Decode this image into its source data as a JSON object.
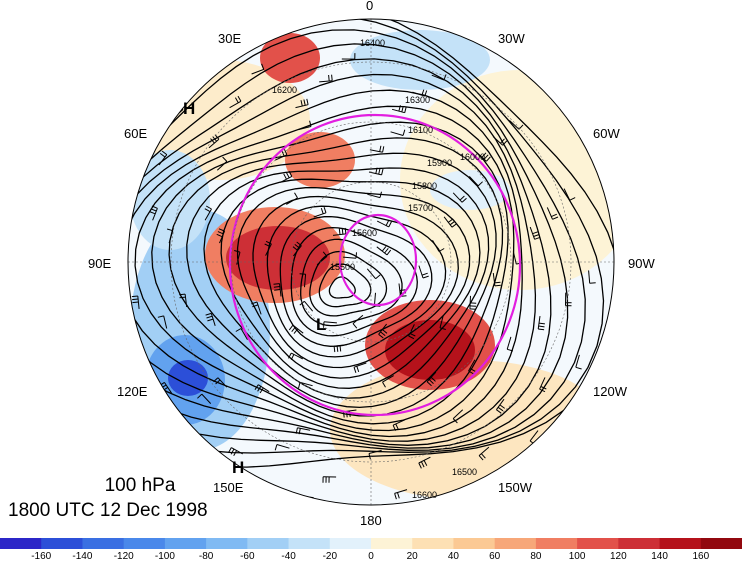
{
  "map": {
    "level_label": "100 hPa",
    "time_label": "1800 UTC 12 Dec 1998",
    "longitude_labels": [
      "0",
      "30W",
      "60W",
      "90W",
      "120W",
      "150W",
      "180",
      "150E",
      "120E",
      "90E",
      "60E",
      "30E"
    ],
    "height_contour_labels": [
      "16400",
      "16300",
      "16200",
      "16100",
      "15900",
      "15800",
      "15700",
      "15600",
      "15500",
      "16000",
      "16500",
      "16600"
    ],
    "pressure_centers": [
      "H",
      "H",
      "L"
    ],
    "colors": {
      "positive_anomaly": "#b5121b",
      "negative_anomaly": "#2b4fd6",
      "highlight_contour": "#e21ee0",
      "contour": "#000000"
    }
  },
  "colorbar": {
    "tick_labels": [
      "-160",
      "-140",
      "-120",
      "-100",
      "-80",
      "-60",
      "-40",
      "-20",
      "0",
      "20",
      "40",
      "60",
      "80",
      "100",
      "120",
      "140",
      "160"
    ],
    "colors": [
      "#2c26c8",
      "#2c4fd8",
      "#3a6fe2",
      "#4a88ea",
      "#62a2ef",
      "#80baf3",
      "#a2cff5",
      "#c4e2f8",
      "#e2f1fb",
      "#fdf3d6",
      "#fde0b4",
      "#fbc994",
      "#f7a779",
      "#f07e62",
      "#e2514a",
      "#cd2f36",
      "#b5121b",
      "#92080f"
    ]
  }
}
